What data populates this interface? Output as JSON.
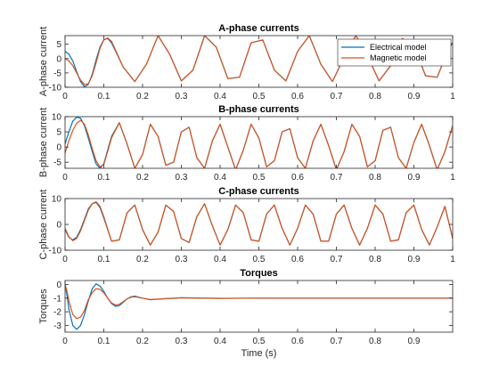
{
  "colors": {
    "electrical": "#0072BD",
    "magnetic": "#D95319",
    "axes": "#262626",
    "background": "#ffffff"
  },
  "chart_data": [
    {
      "type": "line",
      "title": "A-phase currents",
      "xlabel": "",
      "ylabel": "A-phase current",
      "xlim": [
        0,
        1
      ],
      "ylim": [
        -10,
        8
      ],
      "xticks": [
        "0",
        "0.1",
        "0.2",
        "0.3",
        "0.4",
        "0.5",
        "0.6",
        "0.7",
        "0.8",
        "0.9",
        "1"
      ],
      "yticks": [
        "-10",
        "-5",
        "0",
        "5"
      ],
      "ytick_values": [
        -10,
        -5,
        0,
        5
      ],
      "legend": {
        "placement": "top-right",
        "entries": [
          "Electrical model",
          "Magnetic model"
        ]
      },
      "series": [
        {
          "name": "Electrical model",
          "color": "#0072BD",
          "x": [
            0,
            0.01,
            0.02,
            0.03,
            0.04,
            0.05,
            0.06,
            0.07,
            0.08,
            0.09,
            0.1,
            0.11,
            0.12,
            0.15,
            0.18,
            0.21,
            0.24,
            0.27,
            0.3,
            0.33,
            0.36,
            0.39,
            0.42,
            0.45,
            0.48,
            0.51,
            0.54,
            0.57,
            0.6,
            0.63,
            0.66,
            0.69,
            0.72,
            0.75,
            0.78,
            0.81,
            0.84,
            0.87,
            0.9,
            0.93,
            0.96,
            0.99,
            1.0
          ],
          "y": [
            2.5,
            1.5,
            -0.8,
            -4.5,
            -8.0,
            -9.8,
            -9.0,
            -5.5,
            -0.5,
            4.0,
            6.5,
            7.0,
            5.5,
            -3.0,
            -8.0,
            -2.0,
            8.0,
            1.5,
            -7.8,
            -4.0,
            8.0,
            4.0,
            -7.0,
            -6.5,
            5.5,
            6.5,
            -4.0,
            -7.8,
            2.5,
            8.0,
            -2.0,
            -8.0,
            0.5,
            8.0,
            1.0,
            -7.8,
            -2.5,
            7.0,
            4.5,
            -6.0,
            -6.5,
            3.5,
            5.5
          ]
        },
        {
          "name": "Magnetic model",
          "color": "#D95319",
          "x": [
            0,
            0.01,
            0.02,
            0.03,
            0.04,
            0.05,
            0.06,
            0.07,
            0.08,
            0.09,
            0.1,
            0.11,
            0.12,
            0.15,
            0.18,
            0.21,
            0.24,
            0.27,
            0.3,
            0.33,
            0.36,
            0.39,
            0.42,
            0.45,
            0.48,
            0.51,
            0.54,
            0.57,
            0.6,
            0.63,
            0.66,
            0.69,
            0.72,
            0.75,
            0.78,
            0.81,
            0.84,
            0.87,
            0.9,
            0.93,
            0.96,
            0.99,
            1.0
          ],
          "y": [
            0.0,
            -0.8,
            -2.5,
            -5.0,
            -7.5,
            -9.0,
            -8.8,
            -6.0,
            -1.5,
            3.5,
            6.5,
            7.2,
            6.0,
            -3.0,
            -8.0,
            -2.0,
            8.0,
            1.5,
            -7.8,
            -4.0,
            8.0,
            4.0,
            -7.0,
            -6.5,
            5.5,
            6.5,
            -4.0,
            -7.8,
            2.5,
            8.0,
            -2.0,
            -8.0,
            0.5,
            8.0,
            1.0,
            -7.8,
            -2.5,
            7.0,
            4.5,
            -6.0,
            -6.5,
            3.5,
            5.5
          ]
        }
      ]
    },
    {
      "type": "line",
      "title": "B-phase currents",
      "xlabel": "",
      "ylabel": "B-phase current",
      "xlim": [
        0,
        1
      ],
      "ylim": [
        -7,
        10
      ],
      "xticks": [
        "0",
        "0.1",
        "0.2",
        "0.3",
        "0.4",
        "0.5",
        "0.6",
        "0.7",
        "0.8",
        "0.9",
        "1"
      ],
      "yticks": [
        "-5",
        "0",
        "5",
        "10"
      ],
      "ytick_values": [
        -5,
        0,
        5,
        10
      ],
      "series": [
        {
          "name": "Electrical model",
          "color": "#0072BD",
          "x": [
            0,
            0.01,
            0.02,
            0.03,
            0.04,
            0.05,
            0.06,
            0.07,
            0.08,
            0.09,
            0.1,
            0.11,
            0.12,
            0.14,
            0.16,
            0.18,
            0.2,
            0.22,
            0.24,
            0.26,
            0.28,
            0.3,
            0.32,
            0.34,
            0.36,
            0.38,
            0.4,
            0.42,
            0.44,
            0.46,
            0.48,
            0.5,
            0.52,
            0.54,
            0.56,
            0.58,
            0.6,
            0.62,
            0.64,
            0.66,
            0.68,
            0.7,
            0.72,
            0.74,
            0.76,
            0.78,
            0.8,
            0.82,
            0.84,
            0.86,
            0.88,
            0.9,
            0.92,
            0.94,
            0.96,
            0.98,
            1.0
          ],
          "y": [
            1.0,
            5.0,
            8.5,
            9.8,
            9.5,
            7.0,
            3.0,
            -1.5,
            -5.5,
            -7.0,
            -5.5,
            -1.0,
            3.5,
            8.0,
            1.0,
            -7.0,
            -2.5,
            7.5,
            3.5,
            -6.0,
            -5.0,
            5.0,
            6.5,
            -3.5,
            -7.0,
            2.0,
            7.5,
            0.0,
            -7.5,
            -1.0,
            7.5,
            3.0,
            -6.5,
            -4.5,
            5.0,
            6.0,
            -3.5,
            -7.0,
            2.0,
            7.5,
            0.5,
            -7.5,
            -1.5,
            7.5,
            3.5,
            -6.5,
            -4.5,
            5.5,
            6.5,
            -3.5,
            -7.0,
            1.5,
            7.5,
            0.5,
            -7.5,
            -1.5,
            7.0
          ]
        },
        {
          "name": "Magnetic model",
          "color": "#D95319",
          "x": [
            0,
            0.01,
            0.02,
            0.03,
            0.04,
            0.05,
            0.06,
            0.07,
            0.08,
            0.09,
            0.1,
            0.11,
            0.12,
            0.14,
            0.16,
            0.18,
            0.2,
            0.22,
            0.24,
            0.26,
            0.28,
            0.3,
            0.32,
            0.34,
            0.36,
            0.38,
            0.4,
            0.42,
            0.44,
            0.46,
            0.48,
            0.5,
            0.52,
            0.54,
            0.56,
            0.58,
            0.6,
            0.62,
            0.64,
            0.66,
            0.68,
            0.7,
            0.72,
            0.74,
            0.76,
            0.78,
            0.8,
            0.82,
            0.84,
            0.86,
            0.88,
            0.9,
            0.92,
            0.94,
            0.96,
            0.98,
            1.0
          ],
          "y": [
            -2.0,
            2.0,
            5.5,
            7.8,
            8.8,
            7.5,
            4.0,
            -0.5,
            -4.5,
            -6.5,
            -5.8,
            -1.5,
            3.0,
            8.0,
            1.0,
            -7.0,
            -2.5,
            7.5,
            3.5,
            -6.0,
            -5.0,
            5.0,
            6.5,
            -3.5,
            -7.0,
            2.0,
            7.5,
            0.0,
            -7.5,
            -1.0,
            7.5,
            3.0,
            -6.5,
            -4.5,
            5.0,
            6.0,
            -3.5,
            -7.0,
            2.0,
            7.5,
            0.5,
            -7.5,
            -1.5,
            7.5,
            3.5,
            -6.5,
            -4.5,
            5.5,
            6.5,
            -3.5,
            -7.0,
            1.5,
            7.5,
            0.5,
            -7.5,
            -1.5,
            7.0
          ]
        }
      ]
    },
    {
      "type": "line",
      "title": "C-phase currents",
      "xlabel": "",
      "ylabel": "C-phase current",
      "xlim": [
        0,
        1
      ],
      "ylim": [
        -10,
        10
      ],
      "xticks": [
        "0",
        "0.1",
        "0.2",
        "0.3",
        "0.4",
        "0.5",
        "0.6",
        "0.7",
        "0.8",
        "0.9",
        "1"
      ],
      "yticks": [
        "-10",
        "0",
        "10"
      ],
      "ytick_values": [
        -10,
        0,
        10
      ],
      "series": [
        {
          "name": "Electrical model",
          "color": "#0072BD",
          "x": [
            0,
            0.01,
            0.02,
            0.03,
            0.04,
            0.05,
            0.06,
            0.07,
            0.08,
            0.09,
            0.1,
            0.12,
            0.14,
            0.16,
            0.18,
            0.2,
            0.22,
            0.24,
            0.26,
            0.28,
            0.3,
            0.32,
            0.34,
            0.36,
            0.38,
            0.4,
            0.42,
            0.44,
            0.46,
            0.48,
            0.5,
            0.52,
            0.54,
            0.56,
            0.58,
            0.6,
            0.62,
            0.64,
            0.66,
            0.68,
            0.7,
            0.72,
            0.74,
            0.76,
            0.78,
            0.8,
            0.82,
            0.84,
            0.86,
            0.88,
            0.9,
            0.92,
            0.94,
            0.96,
            0.98,
            1.0
          ],
          "y": [
            -2.0,
            -5.0,
            -6.0,
            -5.0,
            -2.0,
            2.0,
            6.0,
            8.0,
            8.5,
            6.5,
            2.5,
            -6.5,
            -6.0,
            4.5,
            7.5,
            -2.0,
            -8.0,
            -3.0,
            7.5,
            5.0,
            -5.5,
            -7.0,
            3.0,
            8.0,
            -0.5,
            -8.0,
            -2.0,
            7.5,
            4.5,
            -6.0,
            -6.5,
            4.0,
            7.5,
            -1.5,
            -8.0,
            -1.5,
            7.5,
            4.0,
            -6.5,
            -6.5,
            4.0,
            7.5,
            -1.5,
            -8.0,
            -1.5,
            7.5,
            4.0,
            -6.5,
            -6.0,
            4.5,
            7.5,
            -2.0,
            -8.0,
            -1.0,
            7.0,
            -5.5
          ]
        },
        {
          "name": "Magnetic model",
          "color": "#D95319",
          "x": [
            0,
            0.01,
            0.02,
            0.03,
            0.04,
            0.05,
            0.06,
            0.07,
            0.08,
            0.09,
            0.1,
            0.12,
            0.14,
            0.16,
            0.18,
            0.2,
            0.22,
            0.24,
            0.26,
            0.28,
            0.3,
            0.32,
            0.34,
            0.36,
            0.38,
            0.4,
            0.42,
            0.44,
            0.46,
            0.48,
            0.5,
            0.52,
            0.54,
            0.56,
            0.58,
            0.6,
            0.62,
            0.64,
            0.66,
            0.68,
            0.7,
            0.72,
            0.74,
            0.76,
            0.78,
            0.8,
            0.82,
            0.84,
            0.86,
            0.88,
            0.9,
            0.92,
            0.94,
            0.96,
            0.98,
            1.0
          ],
          "y": [
            -1.5,
            -4.8,
            -6.3,
            -5.5,
            -2.5,
            1.5,
            5.5,
            8.0,
            8.8,
            7.0,
            3.0,
            -6.5,
            -6.0,
            4.5,
            7.5,
            -2.0,
            -8.0,
            -3.0,
            7.5,
            5.0,
            -5.5,
            -7.0,
            3.0,
            8.0,
            -0.5,
            -8.0,
            -2.0,
            7.5,
            4.5,
            -6.0,
            -6.5,
            4.0,
            7.5,
            -1.5,
            -8.0,
            -1.5,
            7.5,
            4.0,
            -6.5,
            -6.5,
            4.0,
            7.5,
            -1.5,
            -8.0,
            -1.5,
            7.5,
            4.0,
            -6.5,
            -6.0,
            4.5,
            7.5,
            -2.0,
            -8.0,
            -1.0,
            7.0,
            -5.5
          ]
        }
      ]
    },
    {
      "type": "line",
      "title": "Torques",
      "xlabel": "Time (s)",
      "ylabel": "Torques",
      "xlim": [
        0,
        1
      ],
      "ylim": [
        -3.5,
        0.3
      ],
      "xticks": [
        "0",
        "0.1",
        "0.2",
        "0.3",
        "0.4",
        "0.5",
        "0.6",
        "0.7",
        "0.8",
        "0.9"
      ],
      "xtick_values": [
        0,
        0.1,
        0.2,
        0.3,
        0.4,
        0.5,
        0.6,
        0.7,
        0.8,
        0.9
      ],
      "yticks": [
        "-3",
        "-2",
        "-1",
        "0"
      ],
      "ytick_values": [
        -3,
        -2,
        -1,
        0
      ],
      "series": [
        {
          "name": "Electrical model",
          "color": "#0072BD",
          "x": [
            0,
            0.005,
            0.01,
            0.02,
            0.03,
            0.04,
            0.05,
            0.06,
            0.07,
            0.08,
            0.09,
            0.1,
            0.11,
            0.12,
            0.13,
            0.14,
            0.15,
            0.16,
            0.17,
            0.18,
            0.2,
            0.22,
            0.25,
            0.3,
            0.4,
            0.5,
            1.0
          ],
          "y": [
            0.0,
            -0.8,
            -1.8,
            -3.0,
            -3.3,
            -3.0,
            -2.2,
            -1.2,
            -0.3,
            0.05,
            -0.1,
            -0.5,
            -1.0,
            -1.4,
            -1.6,
            -1.55,
            -1.3,
            -1.05,
            -0.9,
            -0.85,
            -1.0,
            -1.12,
            -1.05,
            -0.97,
            -1.02,
            -1.0,
            -1.0
          ]
        },
        {
          "name": "Magnetic model",
          "color": "#D95319",
          "x": [
            0,
            0.005,
            0.01,
            0.02,
            0.03,
            0.04,
            0.05,
            0.06,
            0.07,
            0.08,
            0.09,
            0.1,
            0.11,
            0.12,
            0.13,
            0.14,
            0.15,
            0.16,
            0.17,
            0.18,
            0.2,
            0.22,
            0.25,
            0.3,
            0.4,
            0.5,
            1.0
          ],
          "y": [
            0.0,
            -0.5,
            -1.2,
            -2.2,
            -2.5,
            -2.4,
            -1.9,
            -1.1,
            -0.6,
            -0.3,
            -0.35,
            -0.6,
            -1.0,
            -1.35,
            -1.5,
            -1.45,
            -1.25,
            -1.05,
            -0.93,
            -0.9,
            -1.0,
            -1.1,
            -1.05,
            -0.98,
            -1.01,
            -1.0,
            -1.0
          ]
        }
      ]
    }
  ]
}
